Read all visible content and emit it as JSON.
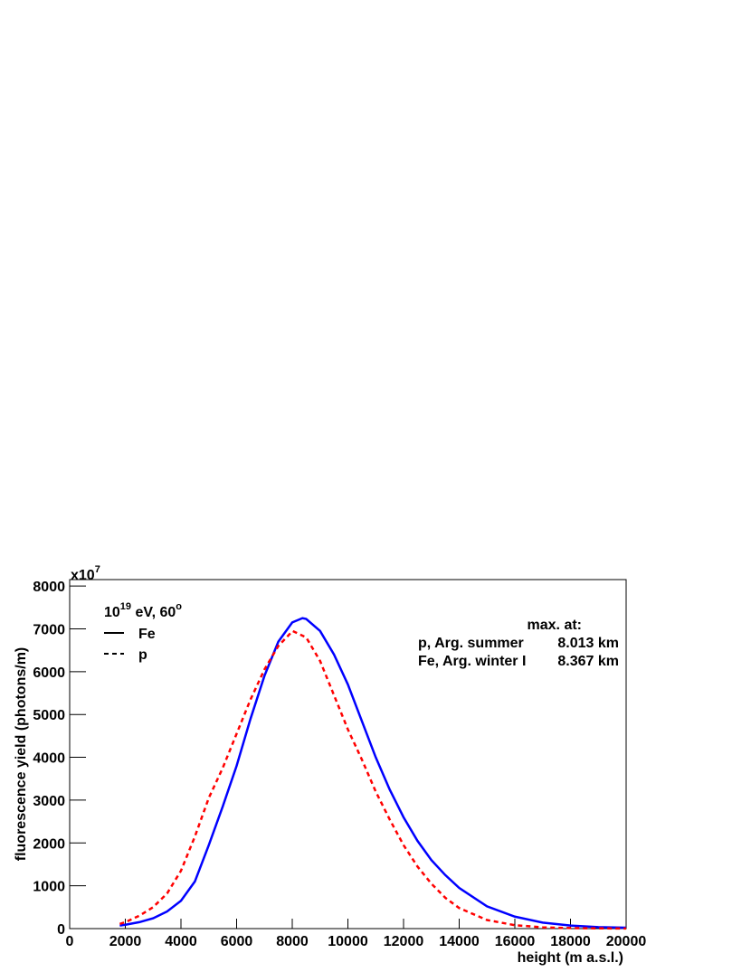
{
  "chart_data": {
    "type": "line",
    "multiplier": {
      "base": "x10",
      "exponent": "7"
    },
    "ylabel": "fluorescence yield (photons/m)",
    "xlabel": "height (m a.s.l.)",
    "legend_title": {
      "base": "10",
      "exponent": "19",
      "rest": " eV, 60",
      "degree": "o"
    },
    "legend_corner": "upper left",
    "annotation_title": "max. at:",
    "annotations": [
      {
        "text": "p, Arg. summer",
        "value": "8.013 km",
        "color": "#ff0000"
      },
      {
        "text": "Fe, Arg. winter I",
        "value": "8.367 km",
        "color": "#0000ff"
      }
    ],
    "xlim": [
      0,
      20000
    ],
    "ylim": [
      0,
      8150
    ],
    "xticks": [
      0,
      2000,
      4000,
      6000,
      8000,
      10000,
      12000,
      14000,
      16000,
      18000,
      20000
    ],
    "yticks": [
      0,
      1000,
      2000,
      3000,
      4000,
      5000,
      6000,
      7000,
      8000
    ],
    "series": [
      {
        "name": "Fe",
        "color": "#0000ff",
        "dash": "solid",
        "x": [
          1800,
          2000,
          2500,
          3000,
          3500,
          4000,
          4500,
          5000,
          5500,
          6000,
          6500,
          7000,
          7500,
          8000,
          8367,
          8500,
          9000,
          9500,
          10000,
          10500,
          11000,
          11500,
          12000,
          12500,
          13000,
          13500,
          14000,
          15000,
          16000,
          17000,
          18000,
          19000,
          20000
        ],
        "values": [
          70,
          90,
          150,
          240,
          400,
          650,
          1100,
          1950,
          2850,
          3800,
          4900,
          5900,
          6700,
          7150,
          7250,
          7230,
          6950,
          6400,
          5700,
          4850,
          4000,
          3250,
          2600,
          2050,
          1600,
          1250,
          950,
          520,
          280,
          140,
          70,
          35,
          20
        ]
      },
      {
        "name": "p",
        "color": "#ff0000",
        "dash": "dashed",
        "x": [
          1800,
          2000,
          2500,
          3000,
          3500,
          4000,
          4500,
          5000,
          5500,
          6000,
          6500,
          7000,
          7500,
          8013,
          8500,
          9000,
          9500,
          10000,
          10500,
          11000,
          11500,
          12000,
          12500,
          13000,
          13500,
          14000,
          15000,
          16000,
          17000,
          18000,
          19000,
          20000
        ],
        "values": [
          110,
          150,
          300,
          500,
          820,
          1350,
          2150,
          3050,
          3750,
          4550,
          5350,
          6050,
          6600,
          6950,
          6800,
          6250,
          5450,
          4650,
          3950,
          3200,
          2550,
          1950,
          1450,
          1050,
          720,
          480,
          200,
          80,
          30,
          12,
          5,
          2
        ]
      }
    ]
  }
}
